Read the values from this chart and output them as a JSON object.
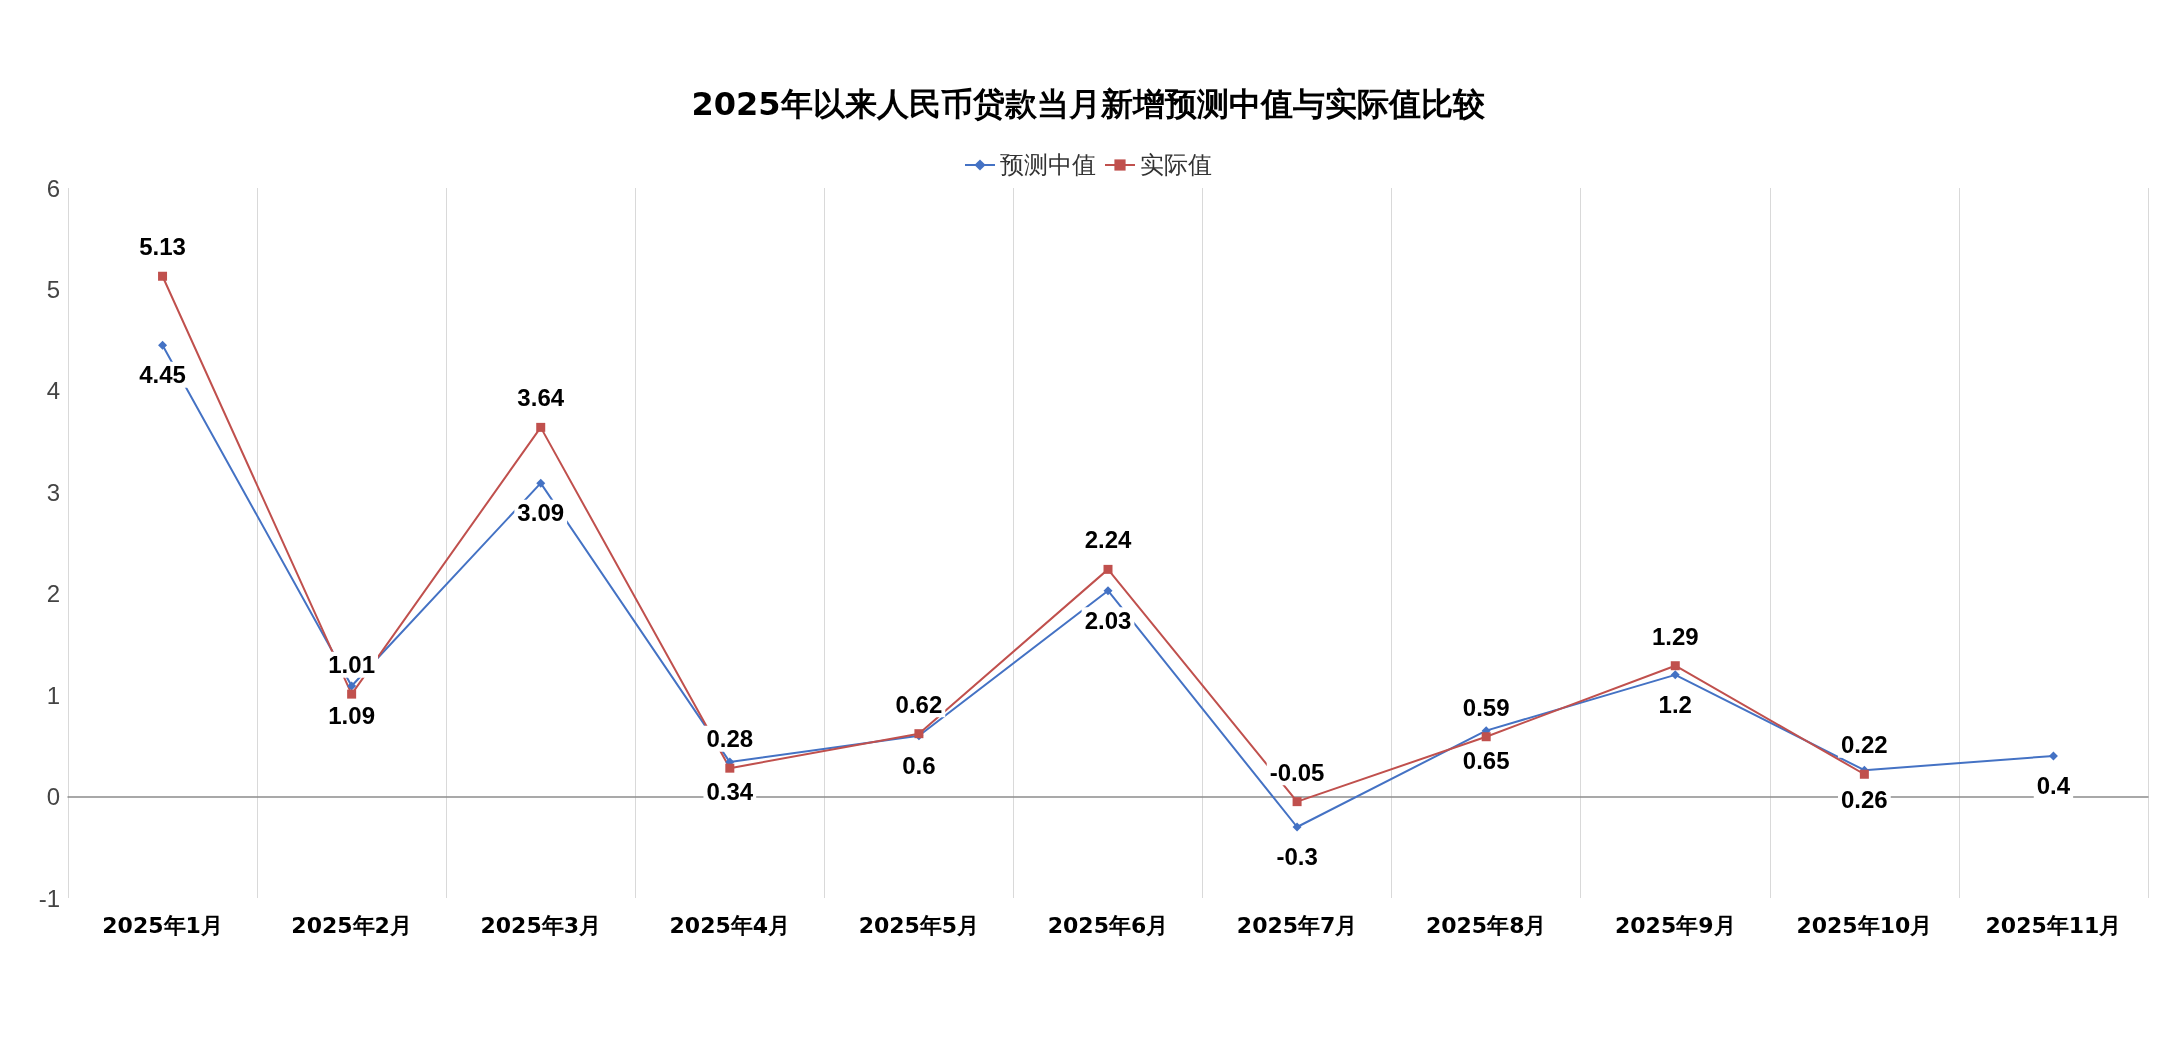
{
  "chart_data": {
    "type": "line",
    "title": "2025年以来人民币贷款当月新增预测中值与实际值比较",
    "categories": [
      "2025年1月",
      "2025年2月",
      "2025年3月",
      "2025年4月",
      "2025年5月",
      "2025年6月",
      "2025年7月",
      "2025年8月",
      "2025年9月",
      "2025年10月",
      "2025年11月"
    ],
    "series": [
      {
        "name": "预测中值",
        "color": "#4472c4",
        "marker": "diamond",
        "values": [
          4.45,
          1.09,
          3.09,
          0.34,
          0.6,
          2.03,
          -0.3,
          0.65,
          1.2,
          0.26,
          0.4
        ]
      },
      {
        "name": "实际值",
        "color": "#c0504d",
        "marker": "square",
        "values": [
          5.13,
          1.01,
          3.64,
          0.28,
          0.62,
          2.24,
          -0.05,
          0.59,
          1.29,
          0.22,
          null
        ]
      }
    ],
    "ylim": [
      -1,
      6
    ],
    "yticks": [
      -1,
      0,
      1,
      2,
      3,
      4,
      5,
      6
    ],
    "grid": "x",
    "legend": "top",
    "data_labels": true
  }
}
